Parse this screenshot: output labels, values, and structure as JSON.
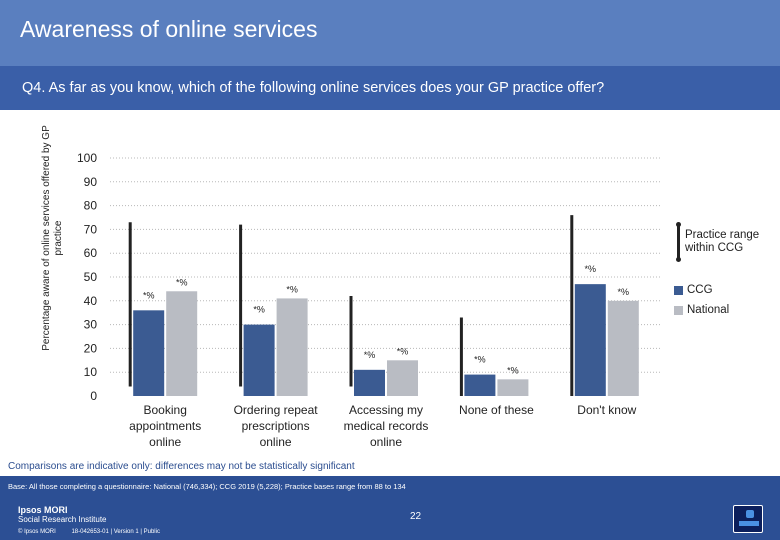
{
  "header": {
    "title": "Awareness of online services",
    "question": "Q4. As far as you know, which of the following online services does your GP practice offer?"
  },
  "chart_data": {
    "type": "bar",
    "ylabel": "Percentage aware of online services offered by GP practice",
    "ylim": [
      0,
      100
    ],
    "yticks": [
      0,
      10,
      20,
      30,
      40,
      50,
      60,
      70,
      80,
      90,
      100
    ],
    "grid": true,
    "legend_position": "right",
    "categories": [
      "Booking appointments online",
      "Ordering repeat prescriptions online",
      "Accessing my medical records online",
      "None of these",
      "Don't know"
    ],
    "series": [
      {
        "name": "CCG",
        "color": "#3b5b92",
        "values": [
          36,
          30,
          11,
          9,
          47
        ],
        "labels": [
          "*%",
          "*%",
          "*%",
          "*%",
          "*%"
        ]
      },
      {
        "name": "National",
        "color": "#b9bcc3",
        "values": [
          44,
          41,
          15,
          7,
          40
        ],
        "labels": [
          "*%",
          "*%",
          "*%",
          "*%",
          "*%"
        ]
      }
    ],
    "range": {
      "name": "Practice range within CCG",
      "min": [
        4,
        4,
        4,
        0,
        0
      ],
      "max": [
        73,
        72,
        42,
        33,
        76
      ]
    }
  },
  "legend": {
    "range_label": "Practice range within CCG",
    "ccg_label": "CCG",
    "national_label": "National",
    "ccg_color": "#3b5b92",
    "national_color": "#b9bcc3"
  },
  "footer": {
    "caveat": "Comparisons are indicative only: differences may not be statistically significant",
    "base": "Base: All those completing a questionnaire: National (746,334); CCG 2019 (5,228); Practice bases range from 88 to 134",
    "page_number": "22",
    "brand_name": "Ipsos MORI",
    "brand_sub": "Social Research Institute",
    "copyright": "© Ipsos MORI",
    "reference": "18-042653-01 | Version 1 | Public"
  }
}
